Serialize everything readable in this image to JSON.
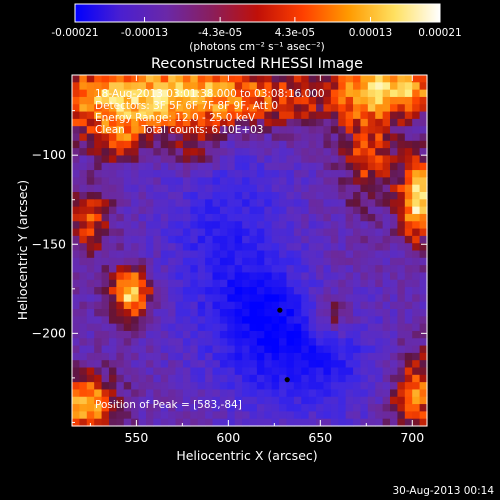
{
  "chart_data": {
    "type": "heatmap",
    "title": "Reconstructed RHESSI Image",
    "xlabel": "Heliocentric X (arcsec)",
    "ylabel": "Heliocentric Y (arcsec)",
    "xlim": [
      515,
      708
    ],
    "ylim": [
      -252,
      -55
    ],
    "xticks": [
      550,
      600,
      650,
      700
    ],
    "yticks": [
      -200,
      -150,
      -100
    ],
    "colorbar": {
      "min": -0.00021,
      "max": 0.00021,
      "ticks": [
        -0.00021,
        -0.00013,
        -4.3e-05,
        4.3e-05,
        0.00013,
        0.00021
      ],
      "tick_labels": [
        "-0.00021",
        "-0.00013",
        "-4.3e-05",
        "4.3e-05",
        "0.00013",
        "0.00021"
      ],
      "unit_label": "(photons cm⁻² s⁻¹ asec⁻²)",
      "colors": [
        "#0000ff",
        "#4a1fd0",
        "#6a28a8",
        "#8a1e5c",
        "#c01008",
        "#ff4000",
        "#ff9a00",
        "#ffe060",
        "#ffffff"
      ]
    },
    "annotations": [
      "18-Aug-2013 03:01:38.000 to 03:08:16.000",
      "Detectors: 3F 5F 6F 7F 8F 9F, Att 0",
      "Energy Range: 12.0 - 25.0 keV",
      "Clean     Total counts: 6.10E+03"
    ],
    "peak_label": "Position of Peak = [583,-84]",
    "markers": [
      {
        "x": 628,
        "y": -187
      },
      {
        "x": 632,
        "y": -226
      }
    ],
    "hotspots": [
      {
        "x": 565,
        "y": -68,
        "sx": 60,
        "sy": 14,
        "a": 1.0
      },
      {
        "x": 690,
        "y": -63,
        "sx": 20,
        "sy": 10,
        "a": 0.85
      },
      {
        "x": 703,
        "y": -125,
        "sx": 7,
        "sy": 16,
        "a": 1.05
      },
      {
        "x": 547,
        "y": -177,
        "sx": 8,
        "sy": 11,
        "a": 1.0
      },
      {
        "x": 522,
        "y": -240,
        "sx": 12,
        "sy": 12,
        "a": 0.9
      },
      {
        "x": 701,
        "y": -233,
        "sx": 10,
        "sy": 18,
        "a": 0.75
      },
      {
        "x": 525,
        "y": -137,
        "sx": 8,
        "sy": 12,
        "a": 0.6
      },
      {
        "x": 676,
        "y": -100,
        "sx": 10,
        "sy": 20,
        "a": 0.55
      },
      {
        "x": 657,
        "y": -190,
        "sx": 8,
        "sy": 9,
        "a": 0.6
      },
      {
        "x": 583,
        "y": -100,
        "sx": 10,
        "sy": 8,
        "a": 0.45
      },
      {
        "x": 540,
        "y": -92,
        "sx": 10,
        "sy": 8,
        "a": 0.5
      }
    ],
    "coldspots": [
      {
        "x": 600,
        "y": -150,
        "sx": 25,
        "sy": 40,
        "a": -0.6
      },
      {
        "x": 640,
        "y": -215,
        "sx": 30,
        "sy": 22,
        "a": -0.75
      },
      {
        "x": 620,
        "y": -185,
        "sx": 15,
        "sy": 15,
        "a": -0.5
      }
    ]
  },
  "footer": {
    "date": "30-Aug-2013 00:14"
  }
}
